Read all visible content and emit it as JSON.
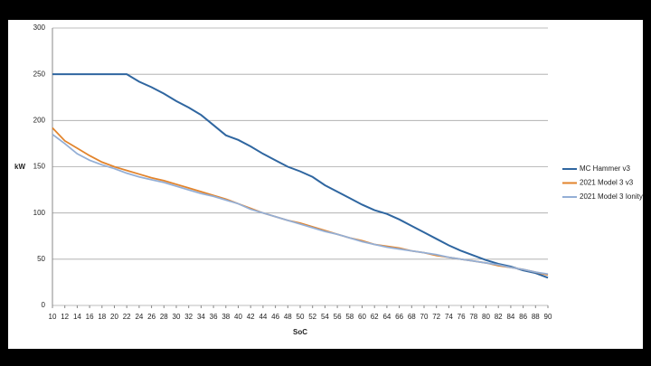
{
  "chart_data": {
    "type": "line",
    "x": [
      10,
      12,
      14,
      16,
      18,
      20,
      22,
      24,
      26,
      28,
      30,
      32,
      34,
      36,
      38,
      40,
      42,
      44,
      46,
      48,
      50,
      52,
      54,
      56,
      58,
      60,
      62,
      64,
      66,
      68,
      70,
      72,
      74,
      76,
      78,
      80,
      82,
      84,
      86,
      88,
      90
    ],
    "series": [
      {
        "name": "MC Hammer v3",
        "color": "#2f66a0",
        "values": [
          250,
          250,
          250,
          250,
          250,
          250,
          250,
          242,
          236,
          229,
          221,
          214,
          206,
          195,
          184,
          179,
          172,
          164,
          157,
          150,
          145,
          139,
          130,
          123,
          116,
          109,
          103,
          99,
          93,
          86,
          79,
          72,
          65,
          59,
          54,
          49,
          45,
          42,
          38,
          35,
          30
        ]
      },
      {
        "name": "2021 Model 3 v3",
        "color": "#e2842c",
        "values": [
          192,
          178,
          170,
          162,
          155,
          150,
          146,
          142,
          138,
          135,
          131,
          127,
          123,
          119,
          115,
          110,
          105,
          100,
          96,
          92,
          89,
          85,
          81,
          77,
          73,
          70,
          66,
          64,
          62,
          59,
          57,
          54,
          52,
          50,
          48,
          46,
          43,
          41,
          39,
          36,
          33
        ]
      },
      {
        "name": "2021 Model 3 Ionity",
        "color": "#94afd6",
        "values": [
          185,
          175,
          164,
          157,
          152,
          148,
          143,
          139,
          136,
          133,
          129,
          125,
          121,
          118,
          114,
          110,
          104,
          100,
          96,
          92,
          88,
          84,
          80,
          77,
          73,
          69,
          66,
          63,
          61,
          59,
          57,
          55,
          52,
          50,
          48,
          46,
          44,
          41,
          39,
          36,
          34
        ]
      }
    ],
    "xlabel": "SoC",
    "ylabel": "kW",
    "xlim": [
      10,
      90
    ],
    "xticks": [
      10,
      12,
      14,
      16,
      18,
      20,
      22,
      24,
      26,
      28,
      30,
      32,
      34,
      36,
      38,
      40,
      42,
      44,
      46,
      48,
      50,
      52,
      54,
      56,
      58,
      60,
      62,
      64,
      66,
      68,
      70,
      72,
      74,
      76,
      78,
      80,
      82,
      84,
      86,
      88,
      90
    ],
    "ylim": [
      0,
      300
    ],
    "yticks": [
      0,
      50,
      100,
      150,
      200,
      250,
      300
    ],
    "grid": true,
    "legend": "right"
  }
}
